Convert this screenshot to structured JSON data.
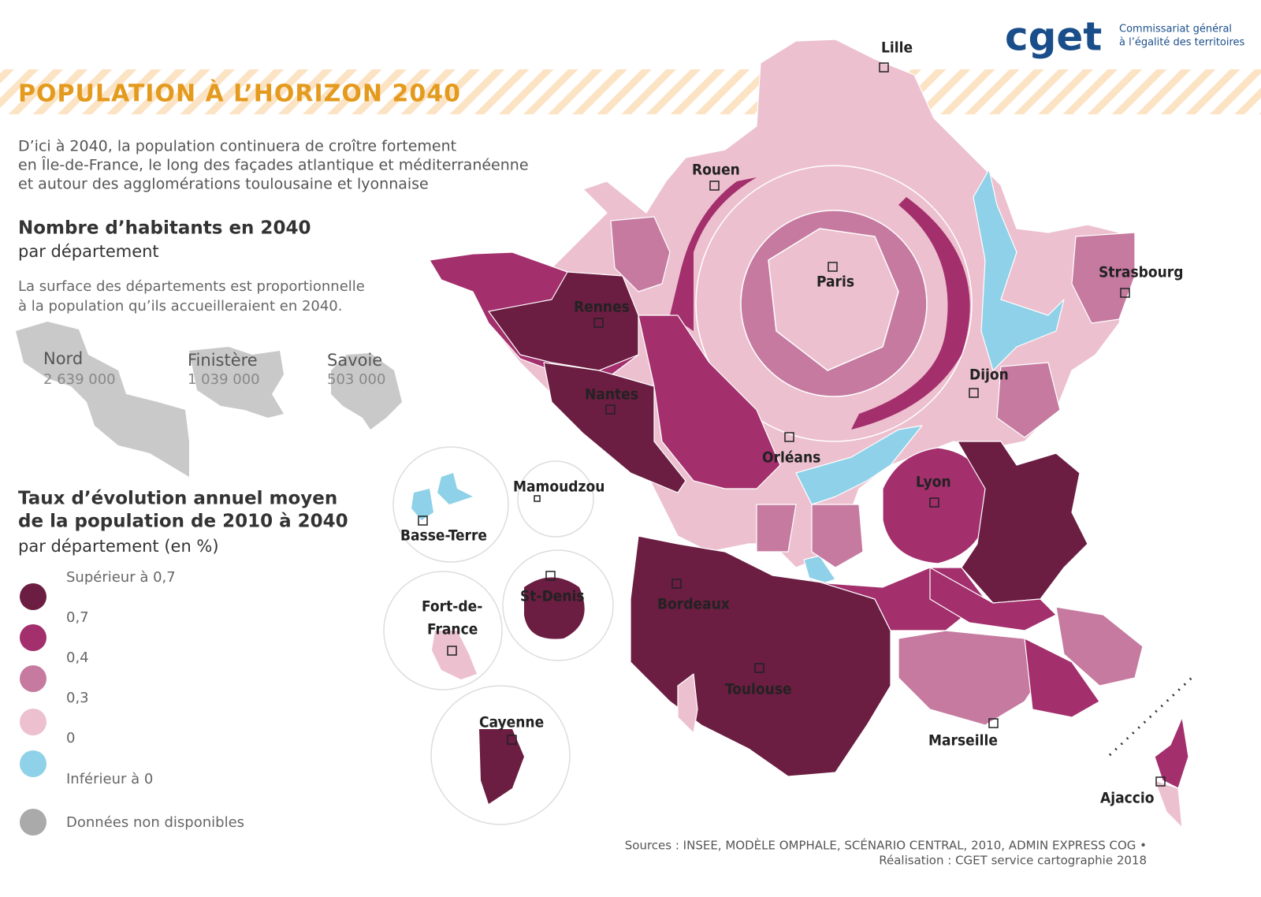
{
  "header": {
    "title": "POPULATION À L’HORIZON 2040",
    "logo": "cget",
    "org": [
      "Commissariat général",
      "à l’égalité des territoires"
    ]
  },
  "intro": [
    "D’ici à 2040, la population continuera de croître fortement",
    "en Île-de-France, le long des façades atlantique et méditerranéenne",
    "et autour des agglomérations toulousaine et lyonnaise"
  ],
  "size_legend": {
    "title": "Nombre d’habitants en 2040",
    "subtitle": "par département",
    "note": [
      "La surface des départements est proportionnelle",
      "à la population qu’ils accueilleraient en 2040."
    ],
    "examples": [
      {
        "name": "Nord",
        "value": "2 639 000"
      },
      {
        "name": "Finistère",
        "value": "1 039 000"
      },
      {
        "name": "Savoie",
        "value": "503 000"
      }
    ]
  },
  "color_legend": {
    "title": [
      "Taux d’évolution annuel moyen",
      "de la population de 2010 à 2040"
    ],
    "subtitle": "par département (en %)",
    "items": [
      "Supérieur à 0,7",
      "0,7",
      "0,4",
      "0,3",
      "0",
      "Inférieur à 0"
    ],
    "na": "Données non disponibles"
  },
  "cities": [
    "Lille",
    "Rouen",
    "Paris",
    "Strasbourg",
    "Rennes",
    "Nantes",
    "Dijon",
    "Orléans",
    "Lyon",
    "Bordeaux",
    "Toulouse",
    "Marseille",
    "Ajaccio",
    "Basse-Terre",
    "Mamoudzou",
    [
      "Fort-de-",
      "France"
    ],
    "St-Denis",
    "Cayenne"
  ],
  "sources": [
    "Sources : INSEE, MODÈLE OMPHALE, SCÉNARIO CENTRAL, 2010, ADMIN EXPRESS COG •",
    "Réalisation : CGET service cartographie 2018"
  ]
}
